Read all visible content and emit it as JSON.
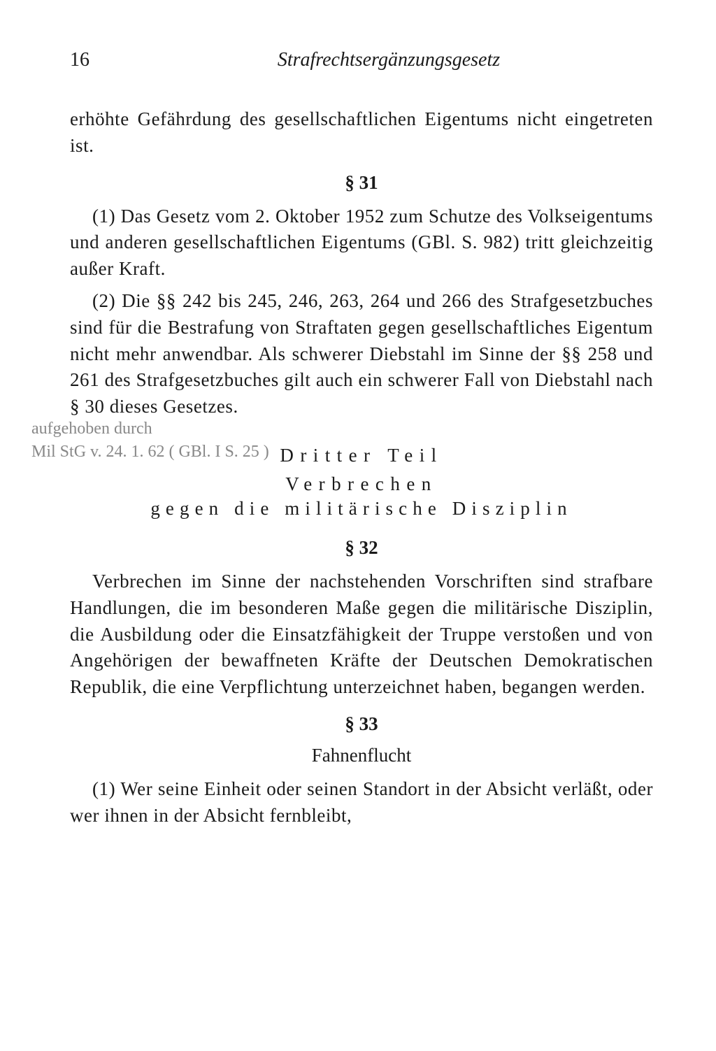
{
  "page": {
    "number": "16",
    "running_header": "Strafrechtsergänzungsgesetz"
  },
  "paragraphs": {
    "continuation": "erhöhte Gefährdung des gesellschaftlichen Eigentums nicht eingetreten ist.",
    "s31_marker": "§ 31",
    "s31_p1": "(1) Das Gesetz vom 2. Oktober 1952 zum Schutze des Volkseigentums und anderen gesellschaftlichen Eigentums (GBl. S. 982) tritt gleichzeitig außer Kraft.",
    "s31_p2": "(2) Die §§ 242 bis 245, 246, 263, 264 und 266 des Strafgesetzbuches sind für die Bestrafung von Straftaten gegen gesellschaftliches Eigentum nicht mehr anwendbar. Als schwerer Diebstahl im Sinne der §§ 258 und 261 des Strafgesetzbuches gilt auch ein schwerer Fall von Diebstahl nach § 30 dieses Gesetzes.",
    "part3_heading": "Dritter Teil",
    "part3_sub1": "Verbrechen",
    "part3_sub2": "gegen die militärische Disziplin",
    "s32_marker": "§ 32",
    "s32_body": "Verbrechen im Sinne der nachstehenden Vorschriften sind strafbare Handlungen, die im besonderen Maße gegen die militärische Disziplin, die Ausbildung oder die Einsatzfähigkeit der Truppe verstoßen und von Angehörigen der bewaffneten Kräfte der Deutschen Demokratischen Republik, die eine Verpflichtung unterzeichnet haben, begangen werden.",
    "s33_marker": "§ 33",
    "s33_title": "Fahnenflucht",
    "s33_p1": "(1) Wer seine Einheit oder seinen Standort in der Absicht verläßt, oder wer ihnen in der Absicht fernbleibt,"
  },
  "annotation": {
    "line1": "aufgehoben durch",
    "line2": "Mil StG v. 24. 1. 62  ( GBl. I  S. 25 )"
  },
  "style": {
    "background_color": "#ffffff",
    "text_color": "#1a1a1a",
    "annotation_color": "#888888",
    "body_fontsize": 27,
    "header_fontsize": 28
  }
}
